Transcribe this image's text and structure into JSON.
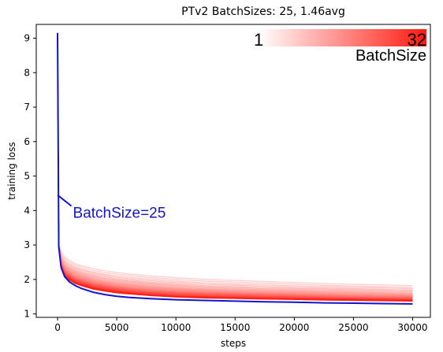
{
  "chart_data": {
    "type": "line",
    "title": "PTv2 BatchSizes: 25, 1.46avg",
    "xlabel": "steps",
    "ylabel": "training loss",
    "xlim": [
      -1800,
      31500
    ],
    "ylim": [
      0.9,
      9.4
    ],
    "x_ticks": [
      0,
      5000,
      10000,
      15000,
      20000,
      25000,
      30000
    ],
    "y_ticks": [
      1,
      2,
      3,
      4,
      5,
      6,
      7,
      8,
      9
    ],
    "grid": false,
    "x": [
      0,
      100,
      300,
      600,
      1000,
      1500,
      2000,
      3000,
      4000,
      5000,
      6000,
      8000,
      10000,
      12500,
      15000,
      17500,
      20000,
      22500,
      25000,
      27500,
      30000
    ],
    "batch_size_range": [
      1,
      32
    ],
    "highlight": {
      "name": "BatchSize=25",
      "batch_size": 25,
      "color": "#1414cc",
      "values": [
        9.15,
        2.95,
        2.35,
        2.08,
        1.93,
        1.82,
        1.74,
        1.63,
        1.56,
        1.51,
        1.48,
        1.44,
        1.41,
        1.39,
        1.37,
        1.35,
        1.34,
        1.32,
        1.31,
        1.3,
        1.29
      ]
    },
    "series_template": {
      "x_fraction_of_final": [
        1,
        1,
        1,
        1,
        1,
        1,
        1,
        1,
        1,
        1,
        1,
        1,
        1,
        1,
        1,
        1,
        1,
        1,
        1,
        1,
        1
      ]
    },
    "series": [
      {
        "batch_size": 1,
        "values": [
          9.15,
          3.05,
          2.8,
          2.65,
          2.55,
          2.46,
          2.4,
          2.31,
          2.25,
          2.2,
          2.16,
          2.1,
          2.05,
          2.0,
          1.97,
          1.94,
          1.91,
          1.88,
          1.86,
          1.84,
          1.82
        ]
      },
      {
        "batch_size": 2,
        "values": [
          9.15,
          3.0,
          2.75,
          2.6,
          2.5,
          2.41,
          2.35,
          2.26,
          2.2,
          2.15,
          2.11,
          2.05,
          2.0,
          1.95,
          1.92,
          1.89,
          1.86,
          1.83,
          1.81,
          1.79,
          1.77
        ]
      },
      {
        "batch_size": 3,
        "values": [
          9.15,
          3.0,
          2.7,
          2.55,
          2.45,
          2.36,
          2.3,
          2.21,
          2.15,
          2.1,
          2.06,
          2.0,
          1.95,
          1.9,
          1.87,
          1.84,
          1.81,
          1.79,
          1.77,
          1.75,
          1.73
        ]
      },
      {
        "batch_size": 4,
        "values": [
          9.15,
          3.0,
          2.68,
          2.52,
          2.42,
          2.33,
          2.27,
          2.18,
          2.12,
          2.06,
          2.02,
          1.96,
          1.91,
          1.86,
          1.83,
          1.8,
          1.77,
          1.75,
          1.73,
          1.71,
          1.69
        ]
      },
      {
        "batch_size": 5,
        "values": [
          9.15,
          3.0,
          2.65,
          2.48,
          2.38,
          2.29,
          2.23,
          2.14,
          2.08,
          2.02,
          1.98,
          1.92,
          1.87,
          1.82,
          1.79,
          1.76,
          1.74,
          1.72,
          1.7,
          1.68,
          1.66
        ]
      },
      {
        "batch_size": 6,
        "values": [
          9.15,
          3.0,
          2.62,
          2.45,
          2.35,
          2.26,
          2.2,
          2.11,
          2.04,
          1.99,
          1.95,
          1.89,
          1.84,
          1.79,
          1.76,
          1.73,
          1.71,
          1.69,
          1.67,
          1.65,
          1.63
        ]
      },
      {
        "batch_size": 7,
        "values": [
          9.15,
          3.0,
          2.6,
          2.42,
          2.32,
          2.23,
          2.17,
          2.08,
          2.01,
          1.96,
          1.92,
          1.86,
          1.81,
          1.76,
          1.73,
          1.7,
          1.68,
          1.66,
          1.64,
          1.62,
          1.6
        ]
      },
      {
        "batch_size": 8,
        "values": [
          9.15,
          3.0,
          2.58,
          2.4,
          2.3,
          2.21,
          2.15,
          2.05,
          1.98,
          1.93,
          1.89,
          1.83,
          1.78,
          1.73,
          1.7,
          1.68,
          1.66,
          1.64,
          1.62,
          1.6,
          1.58
        ]
      },
      {
        "batch_size": 9,
        "values": [
          9.15,
          3.0,
          2.56,
          2.38,
          2.28,
          2.19,
          2.12,
          2.02,
          1.95,
          1.9,
          1.86,
          1.8,
          1.75,
          1.71,
          1.68,
          1.66,
          1.64,
          1.62,
          1.6,
          1.58,
          1.56
        ]
      },
      {
        "batch_size": 10,
        "values": [
          9.15,
          3.0,
          2.55,
          2.36,
          2.26,
          2.17,
          2.1,
          2.0,
          1.93,
          1.88,
          1.84,
          1.78,
          1.73,
          1.69,
          1.66,
          1.64,
          1.62,
          1.6,
          1.58,
          1.56,
          1.55
        ]
      },
      {
        "batch_size": 11,
        "values": [
          9.15,
          3.0,
          2.53,
          2.34,
          2.24,
          2.14,
          2.08,
          1.98,
          1.91,
          1.86,
          1.82,
          1.76,
          1.71,
          1.67,
          1.64,
          1.62,
          1.6,
          1.58,
          1.56,
          1.55,
          1.53
        ]
      },
      {
        "batch_size": 12,
        "values": [
          9.15,
          3.0,
          2.52,
          2.32,
          2.22,
          2.12,
          2.06,
          1.96,
          1.89,
          1.84,
          1.8,
          1.74,
          1.7,
          1.66,
          1.63,
          1.61,
          1.59,
          1.57,
          1.55,
          1.54,
          1.52
        ]
      },
      {
        "batch_size": 13,
        "values": [
          9.15,
          3.0,
          2.5,
          2.3,
          2.2,
          2.1,
          2.04,
          1.94,
          1.87,
          1.82,
          1.78,
          1.72,
          1.68,
          1.64,
          1.61,
          1.59,
          1.57,
          1.55,
          1.53,
          1.52,
          1.5
        ]
      },
      {
        "batch_size": 14,
        "values": [
          9.15,
          3.0,
          2.49,
          2.28,
          2.18,
          2.08,
          2.02,
          1.92,
          1.85,
          1.8,
          1.76,
          1.7,
          1.66,
          1.62,
          1.6,
          1.58,
          1.56,
          1.54,
          1.52,
          1.51,
          1.5
        ]
      },
      {
        "batch_size": 15,
        "values": [
          9.15,
          3.0,
          2.48,
          2.27,
          2.16,
          2.06,
          2.0,
          1.9,
          1.84,
          1.79,
          1.75,
          1.69,
          1.65,
          1.61,
          1.59,
          1.57,
          1.55,
          1.53,
          1.51,
          1.5,
          1.49
        ]
      },
      {
        "batch_size": 16,
        "values": [
          9.15,
          3.0,
          2.47,
          2.26,
          2.15,
          2.05,
          1.99,
          1.89,
          1.83,
          1.78,
          1.74,
          1.68,
          1.64,
          1.6,
          1.58,
          1.56,
          1.54,
          1.52,
          1.5,
          1.49,
          1.48
        ]
      },
      {
        "batch_size": 17,
        "values": [
          9.15,
          3.0,
          2.46,
          2.24,
          2.13,
          2.03,
          1.97,
          1.87,
          1.81,
          1.76,
          1.72,
          1.66,
          1.62,
          1.59,
          1.57,
          1.55,
          1.53,
          1.51,
          1.49,
          1.48,
          1.47
        ]
      },
      {
        "batch_size": 18,
        "values": [
          9.15,
          3.0,
          2.45,
          2.23,
          2.12,
          2.02,
          1.96,
          1.86,
          1.8,
          1.75,
          1.71,
          1.65,
          1.61,
          1.58,
          1.56,
          1.54,
          1.52,
          1.5,
          1.48,
          1.47,
          1.46
        ]
      },
      {
        "batch_size": 19,
        "values": [
          9.15,
          3.0,
          2.44,
          2.22,
          2.11,
          2.01,
          1.95,
          1.85,
          1.79,
          1.74,
          1.7,
          1.64,
          1.6,
          1.57,
          1.55,
          1.53,
          1.51,
          1.49,
          1.47,
          1.46,
          1.45
        ]
      },
      {
        "batch_size": 20,
        "values": [
          9.15,
          3.0,
          2.43,
          2.21,
          2.1,
          2.0,
          1.94,
          1.84,
          1.78,
          1.73,
          1.69,
          1.63,
          1.59,
          1.56,
          1.54,
          1.52,
          1.5,
          1.48,
          1.46,
          1.45,
          1.44
        ]
      },
      {
        "batch_size": 21,
        "values": [
          9.15,
          3.0,
          2.42,
          2.2,
          2.09,
          1.99,
          1.93,
          1.83,
          1.77,
          1.72,
          1.68,
          1.62,
          1.58,
          1.55,
          1.53,
          1.51,
          1.49,
          1.47,
          1.46,
          1.45,
          1.44
        ]
      },
      {
        "batch_size": 22,
        "values": [
          9.15,
          3.0,
          2.41,
          2.19,
          2.08,
          1.98,
          1.92,
          1.82,
          1.76,
          1.71,
          1.67,
          1.61,
          1.57,
          1.54,
          1.52,
          1.5,
          1.48,
          1.46,
          1.45,
          1.44,
          1.43
        ]
      },
      {
        "batch_size": 23,
        "values": [
          9.15,
          3.0,
          2.4,
          2.18,
          2.07,
          1.97,
          1.91,
          1.81,
          1.75,
          1.7,
          1.66,
          1.6,
          1.56,
          1.53,
          1.51,
          1.49,
          1.47,
          1.46,
          1.44,
          1.43,
          1.42
        ]
      },
      {
        "batch_size": 24,
        "values": [
          9.15,
          3.0,
          2.39,
          2.17,
          2.06,
          1.96,
          1.9,
          1.8,
          1.74,
          1.69,
          1.65,
          1.59,
          1.55,
          1.52,
          1.5,
          1.48,
          1.47,
          1.45,
          1.44,
          1.43,
          1.42
        ]
      },
      {
        "batch_size": 26,
        "values": [
          9.15,
          3.0,
          2.38,
          2.15,
          2.04,
          1.94,
          1.88,
          1.78,
          1.72,
          1.67,
          1.63,
          1.57,
          1.53,
          1.5,
          1.49,
          1.47,
          1.45,
          1.44,
          1.43,
          1.42,
          1.41
        ]
      },
      {
        "batch_size": 27,
        "values": [
          9.15,
          3.0,
          2.37,
          2.14,
          2.03,
          1.93,
          1.87,
          1.77,
          1.71,
          1.66,
          1.62,
          1.56,
          1.52,
          1.5,
          1.48,
          1.46,
          1.45,
          1.43,
          1.42,
          1.41,
          1.4
        ]
      },
      {
        "batch_size": 28,
        "values": [
          9.15,
          3.0,
          2.36,
          2.13,
          2.02,
          1.92,
          1.86,
          1.76,
          1.7,
          1.65,
          1.61,
          1.56,
          1.52,
          1.49,
          1.47,
          1.45,
          1.44,
          1.43,
          1.41,
          1.4,
          1.39
        ]
      },
      {
        "batch_size": 29,
        "values": [
          9.15,
          3.0,
          2.35,
          2.12,
          2.01,
          1.91,
          1.85,
          1.75,
          1.69,
          1.64,
          1.6,
          1.55,
          1.51,
          1.48,
          1.46,
          1.45,
          1.43,
          1.42,
          1.41,
          1.4,
          1.39
        ]
      },
      {
        "batch_size": 30,
        "values": [
          9.15,
          3.0,
          2.35,
          2.11,
          2.0,
          1.9,
          1.84,
          1.74,
          1.68,
          1.63,
          1.6,
          1.54,
          1.5,
          1.48,
          1.46,
          1.44,
          1.43,
          1.41,
          1.4,
          1.39,
          1.38
        ]
      },
      {
        "batch_size": 31,
        "values": [
          9.15,
          3.0,
          2.34,
          2.1,
          1.99,
          1.89,
          1.83,
          1.73,
          1.67,
          1.62,
          1.59,
          1.53,
          1.5,
          1.47,
          1.45,
          1.44,
          1.42,
          1.41,
          1.4,
          1.39,
          1.38
        ]
      },
      {
        "batch_size": 32,
        "values": [
          9.15,
          3.0,
          2.33,
          2.09,
          1.98,
          1.88,
          1.82,
          1.72,
          1.66,
          1.61,
          1.58,
          1.53,
          1.49,
          1.46,
          1.45,
          1.43,
          1.42,
          1.4,
          1.39,
          1.38,
          1.37
        ]
      }
    ],
    "colorbar": {
      "label": "BatchSize",
      "min_label": "1",
      "max_label": "32",
      "color_low": "#ffffff",
      "color_high": "#ff1a10"
    },
    "annotation": {
      "text": "BatchSize=25",
      "color": "#1414cc",
      "arrow_from": [
        0,
        4.45
      ],
      "text_at": [
        1300,
        3.95
      ]
    },
    "colors": {
      "low": "#ffffff",
      "high": "#ff1a10",
      "highlight": "#1414cc"
    }
  }
}
